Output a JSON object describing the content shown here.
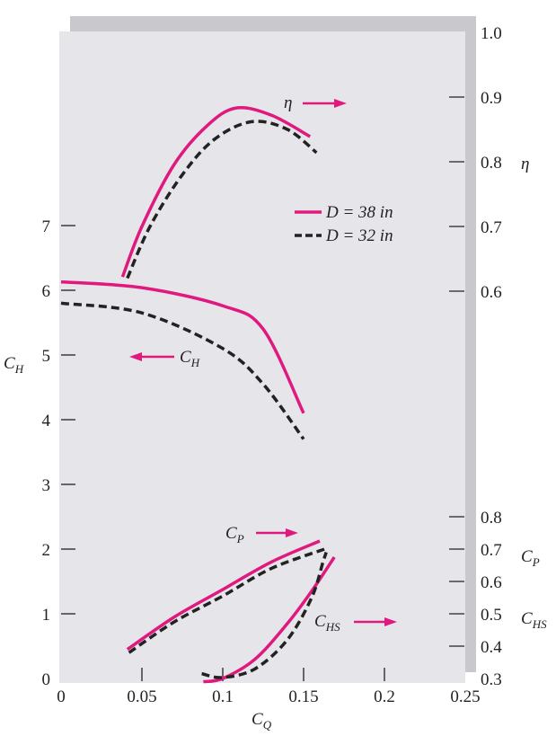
{
  "chart_data": {
    "type": "line",
    "xlabel": "C",
    "xlabel_sub": "Q",
    "xlim": [
      0,
      0.25
    ],
    "xticks": [
      "0",
      "0.05",
      "0.1",
      "0.15",
      "0.2",
      "0.25"
    ],
    "axes": {
      "left": {
        "label": "C",
        "label_sub": "H",
        "ylim": [
          0,
          7.5
        ],
        "ticks": [
          "0",
          "1",
          "2",
          "3",
          "4",
          "5",
          "6",
          "7"
        ]
      },
      "right_eta": {
        "label": "η",
        "ylim": [
          0.6,
          1.0
        ],
        "ticks": [
          "1.0",
          "0.9",
          "0.8",
          "0.7",
          "0.6"
        ]
      },
      "right_cp": {
        "label": "C",
        "label_sub": "P",
        "label2": "C",
        "label2_sub": "HS",
        "ylim": [
          0.3,
          0.8
        ],
        "ticks": [
          "0.8",
          "0.7",
          "0.6",
          "0.5",
          "0.4",
          "0.3"
        ]
      }
    },
    "legend": {
      "placement": "upper-right",
      "entries": [
        {
          "name": "D = 38 in",
          "style": "solid",
          "color": "#e0197f"
        },
        {
          "name": "D = 32 in",
          "style": "dashed",
          "color": "#222222"
        }
      ]
    },
    "annotations": {
      "eta": "η",
      "ch": "C",
      "ch_sub": "H",
      "cp": "C",
      "cp_sub": "P",
      "chs": "C",
      "chs_sub": "HS"
    },
    "series": [
      {
        "quantity": "eta",
        "axis": "right_eta",
        "legend": 0,
        "points": [
          [
            0.038,
            0.622
          ],
          [
            0.05,
            0.7
          ],
          [
            0.07,
            0.796
          ],
          [
            0.09,
            0.855
          ],
          [
            0.108,
            0.883
          ],
          [
            0.13,
            0.872
          ],
          [
            0.154,
            0.839
          ]
        ]
      },
      {
        "quantity": "eta",
        "axis": "right_eta",
        "legend": 1,
        "points": [
          [
            0.041,
            0.62
          ],
          [
            0.055,
            0.7
          ],
          [
            0.075,
            0.78
          ],
          [
            0.095,
            0.835
          ],
          [
            0.118,
            0.862
          ],
          [
            0.14,
            0.85
          ],
          [
            0.158,
            0.814
          ]
        ]
      },
      {
        "quantity": "C_H",
        "axis": "left",
        "legend": 0,
        "points": [
          [
            0,
            6.13
          ],
          [
            0.05,
            6.04
          ],
          [
            0.1,
            5.76
          ],
          [
            0.125,
            5.4
          ],
          [
            0.15,
            4.1
          ]
        ]
      },
      {
        "quantity": "C_H",
        "axis": "left",
        "legend": 1,
        "points": [
          [
            0,
            5.8
          ],
          [
            0.05,
            5.65
          ],
          [
            0.1,
            5.1
          ],
          [
            0.125,
            4.55
          ],
          [
            0.15,
            3.7
          ]
        ]
      },
      {
        "quantity": "C_P",
        "axis": "right_cp",
        "legend": 0,
        "points": [
          [
            0.041,
            0.39
          ],
          [
            0.07,
            0.49
          ],
          [
            0.1,
            0.575
          ],
          [
            0.13,
            0.66
          ],
          [
            0.16,
            0.725
          ]
        ]
      },
      {
        "quantity": "C_P",
        "axis": "right_cp",
        "legend": 1,
        "points": [
          [
            0.042,
            0.38
          ],
          [
            0.07,
            0.475
          ],
          [
            0.1,
            0.555
          ],
          [
            0.13,
            0.64
          ],
          [
            0.163,
            0.7
          ]
        ]
      },
      {
        "quantity": "C_HS",
        "axis": "right_cp",
        "legend": 0,
        "points": [
          [
            0.088,
            0.29
          ],
          [
            0.1,
            0.3
          ],
          [
            0.12,
            0.36
          ],
          [
            0.14,
            0.47
          ],
          [
            0.155,
            0.57
          ],
          [
            0.169,
            0.675
          ]
        ]
      },
      {
        "quantity": "C_HS",
        "axis": "right_cp",
        "legend": 1,
        "points": [
          [
            0.087,
            0.315
          ],
          [
            0.1,
            0.303
          ],
          [
            0.12,
            0.33
          ],
          [
            0.14,
            0.42
          ],
          [
            0.155,
            0.55
          ],
          [
            0.162,
            0.66
          ],
          [
            0.164,
            0.69
          ]
        ]
      }
    ],
    "colors": {
      "accent": "#e0197f",
      "dashed": "#222222",
      "plot_bg": "#e6e6ea",
      "shadow": "#c9c9cd"
    }
  }
}
